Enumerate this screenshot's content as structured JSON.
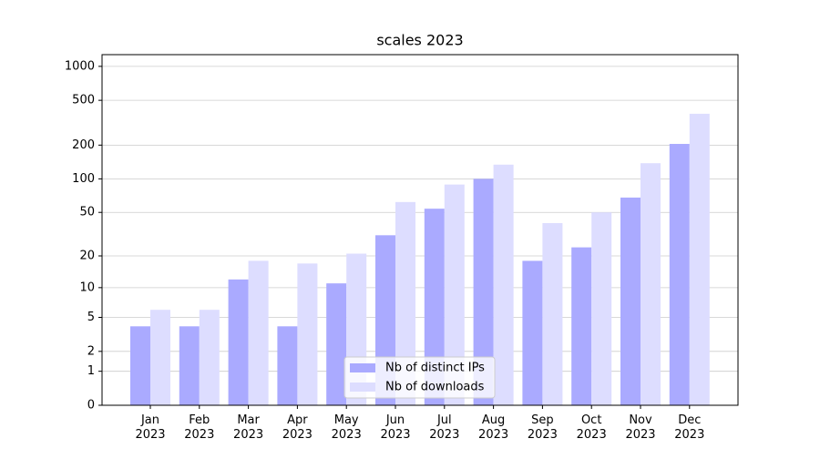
{
  "chart_data": {
    "type": "bar",
    "title": "scales 2023",
    "categories": [
      "Jan 2023",
      "Feb 2023",
      "Mar 2023",
      "Apr 2023",
      "May 2023",
      "Jun 2023",
      "Jul 2023",
      "Aug 2023",
      "Sep 2023",
      "Oct 2023",
      "Nov 2023",
      "Dec 2023"
    ],
    "series": [
      {
        "name": "Nb of distinct IPs",
        "color": "#aaaaff",
        "values": [
          4,
          4,
          12,
          4,
          11,
          31,
          54,
          100,
          18,
          24,
          68,
          205
        ]
      },
      {
        "name": "Nb of downloads",
        "color": "#ddddff",
        "values": [
          6,
          6,
          18,
          17,
          21,
          62,
          89,
          134,
          40,
          50,
          138,
          380
        ]
      }
    ],
    "yscale": "log1p",
    "ylim": [
      0,
      1270
    ],
    "yticks": [
      0,
      1,
      2,
      5,
      10,
      20,
      50,
      100,
      200,
      500,
      1000
    ],
    "grid": true,
    "legend": "lower center"
  }
}
